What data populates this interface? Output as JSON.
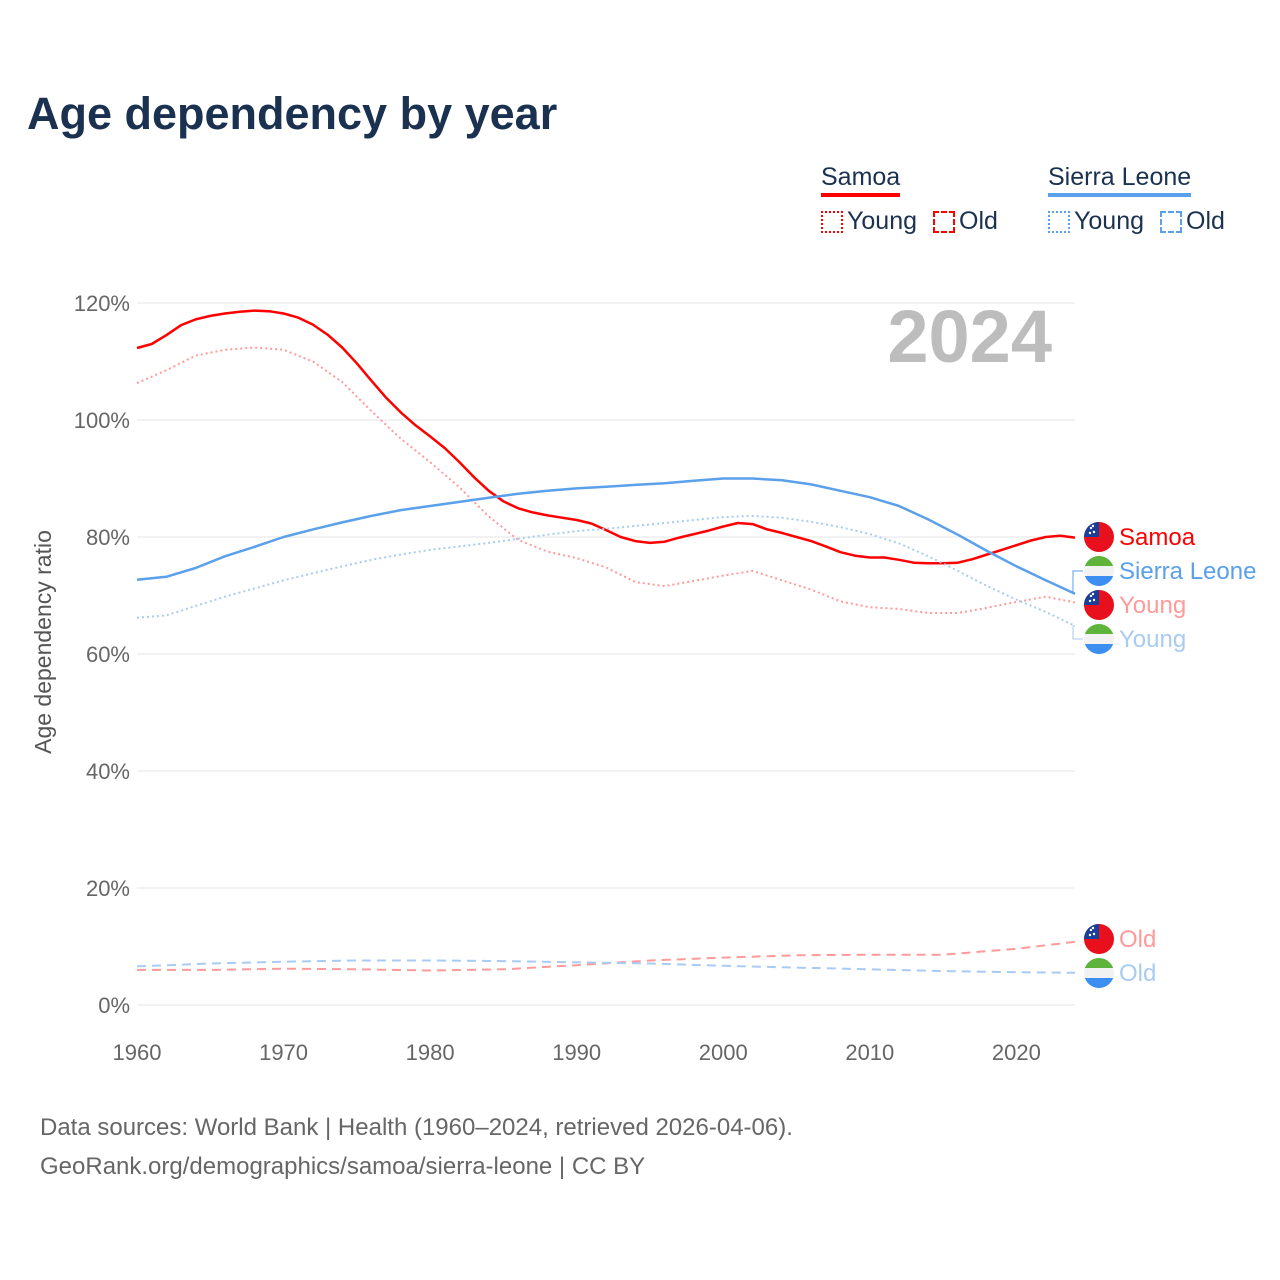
{
  "title": "Age dependency by year",
  "legend": [
    {
      "name": "Samoa",
      "color": "#ff0000",
      "items": [
        {
          "label": "Young",
          "style": "dotted"
        },
        {
          "label": "Old",
          "style": "dashed"
        }
      ]
    },
    {
      "name": "Sierra Leone",
      "color": "#5aa0ea",
      "items": [
        {
          "label": "Young",
          "style": "dotted"
        },
        {
          "label": "Old",
          "style": "dashed"
        }
      ]
    }
  ],
  "source_lines": [
    "Data sources: World Bank | Health (1960–2024, retrieved 2026-04-06).",
    "GeoRank.org/demographics/samoa/sierra-leone | CC BY"
  ],
  "chart_data": {
    "type": "line",
    "year_label": "2024",
    "ylabel": "Age dependency ratio",
    "xlim": [
      1960,
      2024
    ],
    "ylim": [
      0,
      120
    ],
    "xticks": [
      1960,
      1970,
      1980,
      1990,
      2000,
      2010,
      2020
    ],
    "yticks": [
      0,
      20,
      40,
      60,
      80,
      100,
      120
    ],
    "ytick_labels": [
      "0%",
      "20%",
      "40%",
      "60%",
      "80%",
      "100%",
      "120%"
    ],
    "grid": true,
    "series": [
      {
        "name": "Samoa",
        "label": "Samoa",
        "country": "samoa",
        "kind": "total",
        "color": "#ff0000",
        "x": [
          1960,
          1961,
          1962,
          1963,
          1964,
          1965,
          1966,
          1967,
          1968,
          1969,
          1970,
          1971,
          1972,
          1973,
          1974,
          1975,
          1976,
          1977,
          1978,
          1979,
          1980,
          1981,
          1982,
          1983,
          1984,
          1985,
          1986,
          1987,
          1988,
          1989,
          1990,
          1991,
          1992,
          1993,
          1994,
          1995,
          1996,
          1997,
          1998,
          1999,
          2000,
          2001,
          2002,
          2003,
          2004,
          2005,
          2006,
          2007,
          2008,
          2009,
          2010,
          2011,
          2012,
          2013,
          2014,
          2015,
          2016,
          2017,
          2018,
          2019,
          2020,
          2021,
          2022,
          2023,
          2024
        ],
        "y": [
          112.3,
          113,
          114.5,
          116.2,
          117.2,
          117.8,
          118.2,
          118.5,
          118.7,
          118.6,
          118.2,
          117.5,
          116.3,
          114.6,
          112.4,
          109.7,
          106.7,
          103.8,
          101.3,
          99.1,
          97.2,
          95.2,
          92.8,
          90.2,
          87.9,
          86.1,
          84.9,
          84.2,
          83.7,
          83.3,
          82.9,
          82.3,
          81.2,
          80.0,
          79.3,
          79.0,
          79.2,
          79.9,
          80.5,
          81.1,
          81.8,
          82.4,
          82.2,
          81.3,
          80.7,
          80.0,
          79.3,
          78.4,
          77.4,
          76.8,
          76.5,
          76.5,
          76.1,
          75.6,
          75.5,
          75.5,
          75.6,
          76.2,
          77.0,
          77.8,
          78.6,
          79.4,
          80.0,
          80.2,
          79.9
        ]
      },
      {
        "name": "Samoa Young",
        "label": "Young",
        "country": "samoa",
        "kind": "young",
        "color": "#ff9a9a",
        "x": [
          1960,
          1962,
          1964,
          1966,
          1968,
          1970,
          1972,
          1974,
          1976,
          1978,
          1980,
          1982,
          1984,
          1986,
          1988,
          1990,
          1992,
          1994,
          1996,
          1998,
          2000,
          2002,
          2004,
          2006,
          2008,
          2010,
          2012,
          2014,
          2016,
          2018,
          2020,
          2022,
          2024
        ],
        "y": [
          106.3,
          108.5,
          111.0,
          112.0,
          112.4,
          112.0,
          110.0,
          106.5,
          101.5,
          96.8,
          92.8,
          88.5,
          83.5,
          79.5,
          77.5,
          76.4,
          74.8,
          72.3,
          71.6,
          72.5,
          73.4,
          74.2,
          72.6,
          71.0,
          69.0,
          68.0,
          67.7,
          67.0,
          67.0,
          67.9,
          68.9,
          69.8,
          68.8
        ]
      },
      {
        "name": "Samoa Old",
        "label": "Old",
        "country": "samoa",
        "kind": "old",
        "color": "#ff9a9a",
        "x": [
          1960,
          1965,
          1970,
          1975,
          1980,
          1985,
          1990,
          1995,
          2000,
          2005,
          2010,
          2015,
          2020,
          2024
        ],
        "y": [
          6.0,
          6.0,
          6.2,
          6.1,
          5.9,
          6.1,
          6.8,
          7.6,
          8.1,
          8.5,
          8.6,
          8.6,
          9.6,
          10.8
        ]
      },
      {
        "name": "Sierra Leone",
        "label": "Sierra Leone",
        "country": "sierra-leone",
        "kind": "total",
        "color": "#5aa0ea",
        "x": [
          1960,
          1962,
          1964,
          1966,
          1968,
          1970,
          1972,
          1974,
          1976,
          1978,
          1980,
          1982,
          1984,
          1986,
          1988,
          1990,
          1992,
          1994,
          1996,
          1998,
          2000,
          2002,
          2004,
          2006,
          2008,
          2010,
          2012,
          2014,
          2016,
          2018,
          2020,
          2022,
          2024
        ],
        "y": [
          72.7,
          73.2,
          74.7,
          76.7,
          78.3,
          80.0,
          81.3,
          82.5,
          83.6,
          84.6,
          85.3,
          86.0,
          86.7,
          87.4,
          87.9,
          88.3,
          88.6,
          88.9,
          89.2,
          89.6,
          90.0,
          90.0,
          89.7,
          89.0,
          87.9,
          86.8,
          85.3,
          83.0,
          80.4,
          77.6,
          75.0,
          72.6,
          70.3
        ]
      },
      {
        "name": "Sierra Leone Young",
        "label": "Young",
        "country": "sierra-leone",
        "kind": "young",
        "color": "#a8cbf3",
        "x": [
          1960,
          1962,
          1964,
          1966,
          1968,
          1970,
          1972,
          1974,
          1976,
          1978,
          1980,
          1982,
          1984,
          1986,
          1988,
          1990,
          1992,
          1994,
          1996,
          1998,
          2000,
          2002,
          2004,
          2006,
          2008,
          2010,
          2012,
          2014,
          2016,
          2018,
          2020,
          2022,
          2024
        ],
        "y": [
          66.2,
          66.6,
          68.2,
          69.8,
          71.2,
          72.6,
          73.8,
          75.0,
          76.1,
          77.0,
          77.8,
          78.4,
          79.0,
          79.7,
          80.4,
          81.0,
          81.4,
          81.9,
          82.4,
          82.9,
          83.4,
          83.6,
          83.3,
          82.6,
          81.7,
          80.5,
          78.9,
          76.7,
          74.2,
          71.6,
          69.3,
          67.2,
          64.8
        ]
      },
      {
        "name": "Sierra Leone Old",
        "label": "Old",
        "country": "sierra-leone",
        "kind": "old",
        "color": "#a8cbf3",
        "x": [
          1960,
          1965,
          1970,
          1975,
          1980,
          1985,
          1990,
          1995,
          2000,
          2005,
          2010,
          2015,
          2020,
          2024
        ],
        "y": [
          6.6,
          7.1,
          7.4,
          7.6,
          7.6,
          7.5,
          7.3,
          7.1,
          6.7,
          6.4,
          6.1,
          5.8,
          5.6,
          5.5
        ]
      }
    ]
  }
}
